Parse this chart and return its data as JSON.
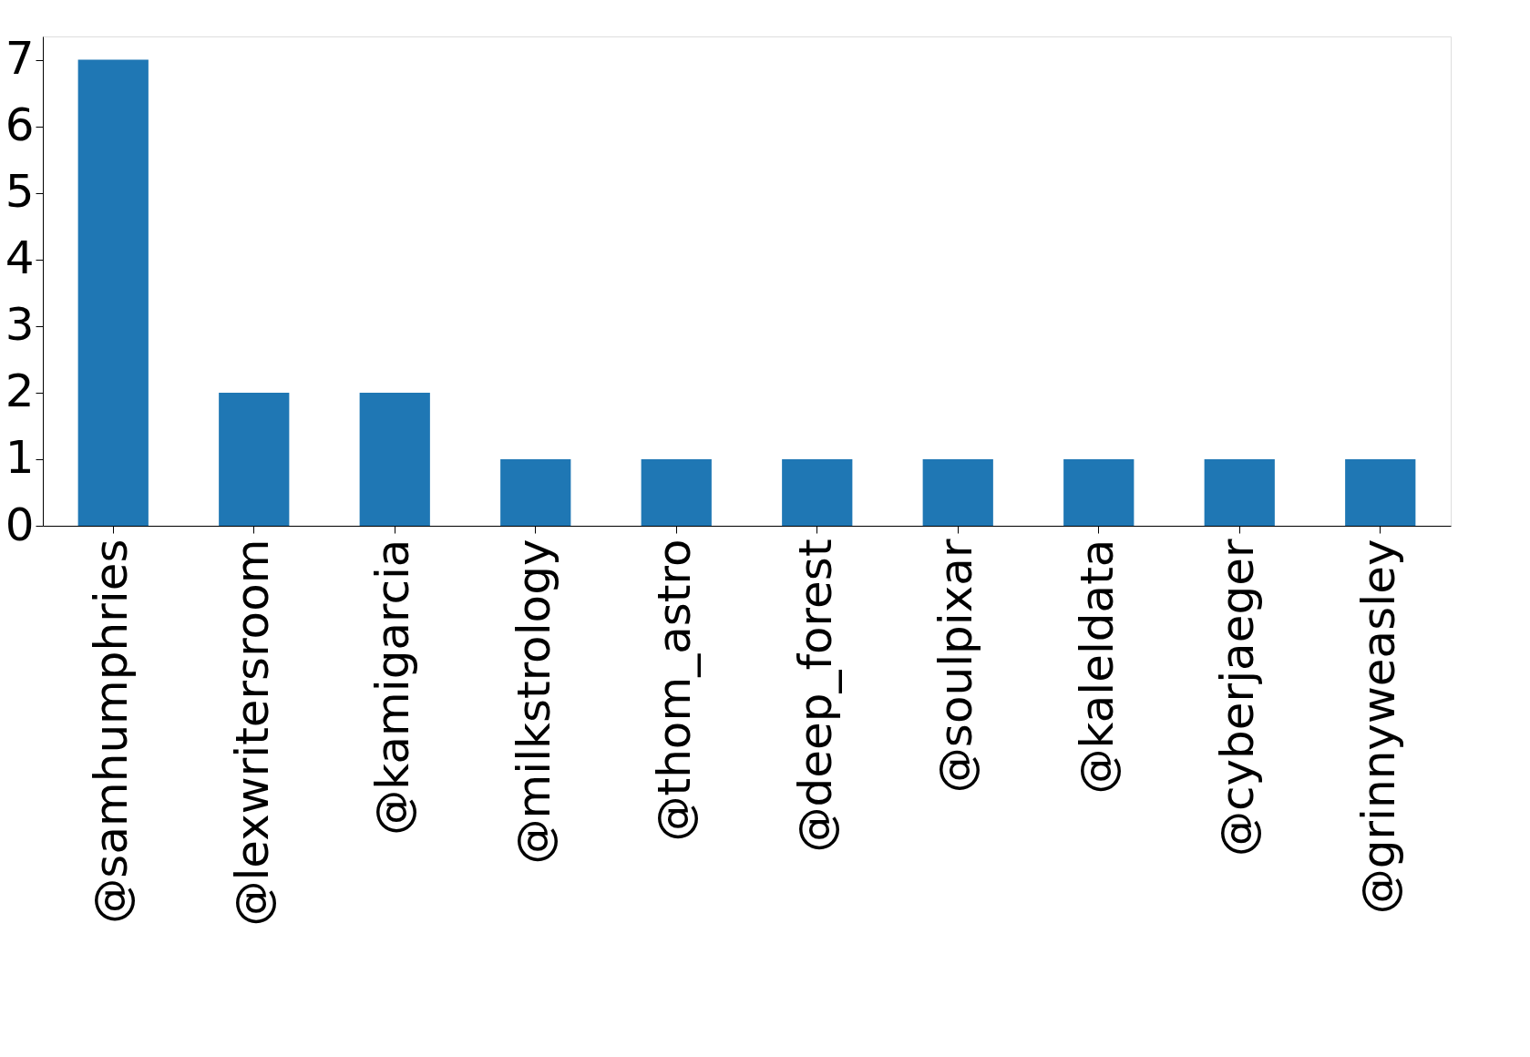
{
  "chart_data": {
    "type": "bar",
    "categories": [
      "@samhumphries",
      "@lexwritersroom",
      "@kamigarcia",
      "@milkstrology",
      "@thom_astro",
      "@deep_forest",
      "@soulpixar",
      "@kaleldata",
      "@cyberjaeger",
      "@grinnyweasley"
    ],
    "values": [
      7,
      2,
      2,
      1,
      1,
      1,
      1,
      1,
      1,
      1
    ],
    "color": "#1f77b4",
    "ylim": [
      0,
      7.35
    ],
    "yticks": [
      0,
      1,
      2,
      3,
      4,
      5,
      6,
      7
    ],
    "grid": false
  }
}
